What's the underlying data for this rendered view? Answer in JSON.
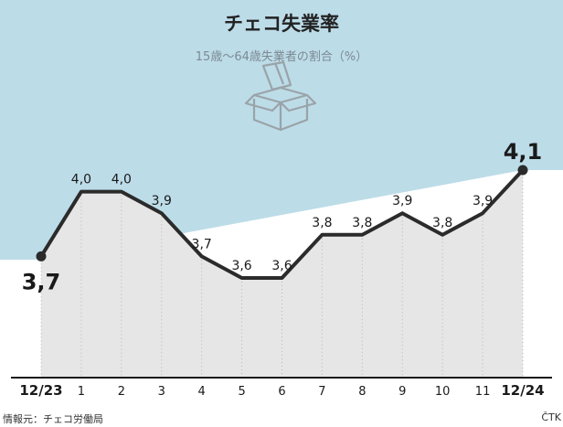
{
  "title": "チェコ失業率",
  "subtitle": "15歳〜64歳失業者の割合（%）",
  "source": "情報元：チェコ労働局",
  "credit": "ČTK",
  "icon": "open-box-icon",
  "colors": {
    "top_band": "#bcdce8",
    "area_fill": "#e6e6e6",
    "line": "#2b2b2b",
    "icon": "#9aa3a8"
  },
  "chart_data": {
    "type": "line",
    "title": "チェコ失業率",
    "subtitle": "15歳〜64歳失業者の割合（%）",
    "xlabel": "",
    "ylabel": "",
    "categories": [
      "12/23",
      "1",
      "2",
      "3",
      "4",
      "5",
      "6",
      "7",
      "8",
      "9",
      "10",
      "11",
      "12/24"
    ],
    "values": [
      3.7,
      4.0,
      4.0,
      3.9,
      3.7,
      3.6,
      3.6,
      3.8,
      3.8,
      3.9,
      3.8,
      3.9,
      4.1
    ],
    "value_labels": [
      "3,7",
      "4,0",
      "4,0",
      "3,9",
      "3,7",
      "3,6",
      "3,6",
      "3,8",
      "3,8",
      "3,9",
      "3,8",
      "3,9",
      "4,1"
    ],
    "grid": false,
    "legend": "none",
    "fill_under_line": true
  }
}
